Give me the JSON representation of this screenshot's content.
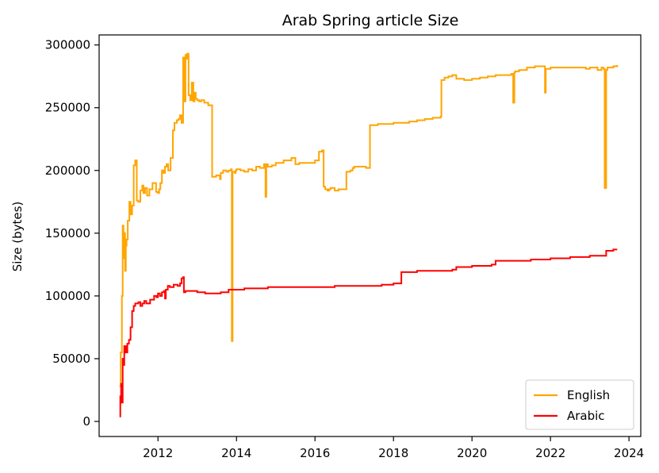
{
  "chart_data": {
    "type": "line",
    "title": "Arab Spring article Size",
    "xlabel": "",
    "ylabel": "Size (bytes)",
    "xlim": [
      2010.5,
      2024.3
    ],
    "ylim": [
      -12000,
      308000
    ],
    "x_ticks": [
      2012,
      2014,
      2016,
      2018,
      2020,
      2022,
      2024
    ],
    "y_ticks": [
      0,
      50000,
      100000,
      150000,
      200000,
      250000,
      300000
    ],
    "grid": false,
    "legend_position": "bottom-right",
    "series": [
      {
        "name": "English",
        "color": "#FFA500",
        "x": [
          2011.02,
          2011.05,
          2011.08,
          2011.1,
          2011.12,
          2011.14,
          2011.16,
          2011.18,
          2011.2,
          2011.23,
          2011.27,
          2011.3,
          2011.34,
          2011.38,
          2011.42,
          2011.46,
          2011.5,
          2011.55,
          2011.6,
          2011.63,
          2011.67,
          2011.72,
          2011.78,
          2011.86,
          2011.95,
          2012.0,
          2012.03,
          2012.06,
          2012.1,
          2012.14,
          2012.18,
          2012.22,
          2012.26,
          2012.32,
          2012.38,
          2012.42,
          2012.48,
          2012.52,
          2012.56,
          2012.6,
          2012.64,
          2012.66,
          2012.7,
          2012.72,
          2012.74,
          2012.78,
          2012.82,
          2012.86,
          2012.9,
          2012.93,
          2012.96,
          2013.0,
          2013.05,
          2013.1,
          2013.18,
          2013.28,
          2013.38,
          2013.48,
          2013.58,
          2013.6,
          2013.66,
          2013.74,
          2013.8,
          2013.86,
          2013.88,
          2013.9,
          2013.96,
          2013.98,
          2014.0,
          2014.1,
          2014.2,
          2014.3,
          2014.4,
          2014.5,
          2014.6,
          2014.7,
          2014.74,
          2014.76,
          2014.8,
          2014.9,
          2015.0,
          2015.2,
          2015.4,
          2015.5,
          2015.6,
          2015.8,
          2016.0,
          2016.1,
          2016.18,
          2016.22,
          2016.26,
          2016.32,
          2016.36,
          2016.4,
          2016.5,
          2016.6,
          2016.8,
          2016.9,
          2016.96,
          2017.0,
          2017.2,
          2017.3,
          2017.4,
          2017.42,
          2017.6,
          2017.8,
          2018.0,
          2018.2,
          2018.4,
          2018.6,
          2018.8,
          2019.0,
          2019.2,
          2019.22,
          2019.3,
          2019.4,
          2019.5,
          2019.6,
          2019.7,
          2019.8,
          2020.0,
          2020.2,
          2020.4,
          2020.6,
          2020.8,
          2021.0,
          2021.05,
          2021.08,
          2021.1,
          2021.2,
          2021.4,
          2021.6,
          2021.8,
          2021.86,
          2021.88,
          2021.9,
          2022.0,
          2022.2,
          2022.4,
          2022.6,
          2022.8,
          2022.9,
          2023.0,
          2023.1,
          2023.2,
          2023.3,
          2023.35,
          2023.38,
          2023.42,
          2023.45,
          2023.5,
          2023.6,
          2023.7
        ],
        "y": [
          28000,
          55000,
          100000,
          156000,
          130000,
          150000,
          120000,
          140000,
          145000,
          160000,
          175000,
          165000,
          172000,
          204000,
          208000,
          176000,
          175000,
          184000,
          188000,
          182000,
          186000,
          180000,
          185000,
          190000,
          183000,
          182000,
          185000,
          190000,
          200000,
          198000,
          203000,
          205000,
          200000,
          210000,
          232000,
          238000,
          240000,
          241000,
          244000,
          238000,
          290000,
          255000,
          292000,
          289000,
          293000,
          260000,
          256000,
          270000,
          255000,
          262000,
          257000,
          256000,
          255000,
          256000,
          254000,
          252000,
          195000,
          196000,
          193000,
          198000,
          200000,
          199000,
          200000,
          201000,
          64000,
          199000,
          198000,
          200000,
          201000,
          200000,
          199000,
          201000,
          200000,
          203000,
          202000,
          205000,
          179000,
          205000,
          203000,
          204000,
          206000,
          208000,
          210000,
          205000,
          206000,
          206000,
          208000,
          215000,
          216000,
          187000,
          185000,
          184000,
          185000,
          186000,
          184000,
          185000,
          199000,
          200000,
          202000,
          203000,
          203000,
          202000,
          236000,
          236000,
          237000,
          237000,
          238000,
          238000,
          239000,
          240000,
          241000,
          242000,
          243000,
          272000,
          274000,
          275000,
          276000,
          273000,
          273000,
          272000,
          273000,
          274000,
          275000,
          276000,
          276000,
          277000,
          254000,
          278000,
          279000,
          280000,
          282000,
          283000,
          283000,
          262000,
          281000,
          281000,
          282000,
          282000,
          282000,
          282000,
          282000,
          281000,
          282000,
          282000,
          280000,
          282000,
          281000,
          186000,
          280000,
          282000,
          282000,
          283000,
          284000
        ]
      },
      {
        "name": "Arabic",
        "color": "#FF0000",
        "x": [
          2011.02,
          2011.04,
          2011.06,
          2011.08,
          2011.1,
          2011.12,
          2011.14,
          2011.18,
          2011.22,
          2011.26,
          2011.3,
          2011.34,
          2011.38,
          2011.42,
          2011.5,
          2011.55,
          2011.6,
          2011.65,
          2011.7,
          2011.8,
          2011.9,
          2011.96,
          2012.0,
          2012.05,
          2012.1,
          2012.15,
          2012.18,
          2012.2,
          2012.25,
          2012.3,
          2012.4,
          2012.5,
          2012.56,
          2012.6,
          2012.64,
          2012.66,
          2012.7,
          2012.8,
          2013.0,
          2013.2,
          2013.4,
          2013.6,
          2013.8,
          2014.0,
          2014.2,
          2014.4,
          2014.6,
          2014.8,
          2015.0,
          2015.5,
          2016.0,
          2016.5,
          2017.0,
          2017.5,
          2017.7,
          2018.0,
          2018.18,
          2018.2,
          2018.4,
          2018.6,
          2019.0,
          2019.5,
          2019.6,
          2020.0,
          2020.5,
          2020.6,
          2020.8,
          2021.0,
          2021.5,
          2022.0,
          2022.5,
          2023.0,
          2023.4,
          2023.42,
          2023.5,
          2023.6,
          2023.7
        ],
        "y": [
          4000,
          20000,
          30000,
          15000,
          50000,
          45000,
          60000,
          55000,
          62000,
          65000,
          75000,
          88000,
          92000,
          94000,
          95000,
          92000,
          94000,
          96000,
          94000,
          97000,
          100000,
          99000,
          102000,
          100000,
          103000,
          104000,
          98000,
          105000,
          108000,
          107000,
          109000,
          108000,
          110000,
          114000,
          115000,
          103000,
          104000,
          104000,
          103000,
          102000,
          102000,
          103000,
          105000,
          105000,
          106000,
          106000,
          106000,
          107000,
          107000,
          107000,
          107000,
          108000,
          108000,
          108000,
          109000,
          110000,
          110000,
          119000,
          119000,
          120000,
          120000,
          121000,
          123000,
          124000,
          125000,
          128000,
          128000,
          128000,
          129000,
          130000,
          131000,
          132000,
          132000,
          136000,
          136000,
          137000,
          137000
        ]
      }
    ]
  }
}
